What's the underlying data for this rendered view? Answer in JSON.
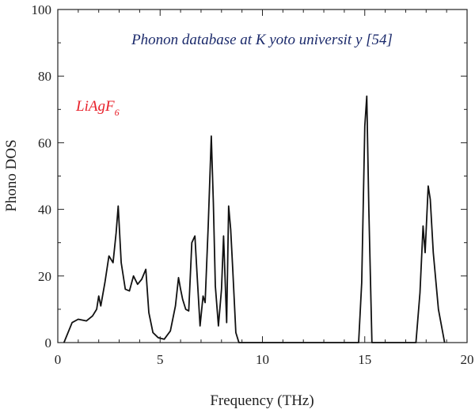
{
  "chart_data": {
    "type": "line",
    "title": "Phonon database at K yoto universit y [54]",
    "xlabel": "Frequency (THz)",
    "ylabel": "Phono DOS",
    "xlim": [
      0,
      20
    ],
    "ylim": [
      0,
      100
    ],
    "xticks": [
      0,
      5,
      10,
      15,
      20
    ],
    "yticks": [
      0,
      20,
      40,
      60,
      80,
      100
    ],
    "annotation": {
      "base": "LiAgF",
      "subscript": "6"
    },
    "colors": {
      "line": "#111111",
      "title": "#1b2a6b",
      "annotation": "#e8202a",
      "axis": "#222222"
    },
    "series": [
      {
        "x": [
          0.3,
          0.7,
          1.0,
          1.4,
          1.7,
          1.9,
          2.0,
          2.1,
          2.3,
          2.5,
          2.7,
          2.85,
          2.95,
          3.1,
          3.3,
          3.5,
          3.7,
          3.9,
          4.1,
          4.3,
          4.45,
          4.65,
          4.9,
          5.2,
          5.5,
          5.75,
          5.9,
          6.0,
          6.1,
          6.25,
          6.4,
          6.55,
          6.7,
          6.8,
          6.95,
          7.1,
          7.2,
          7.35,
          7.5,
          7.6,
          7.7,
          7.85,
          8.0,
          8.1,
          8.25,
          8.35,
          8.45,
          8.55,
          8.7,
          8.85,
          9.0,
          14.7,
          14.85,
          15.0,
          15.1,
          15.2,
          15.35,
          17.5,
          17.7,
          17.85,
          17.95,
          18.1,
          18.2,
          18.35,
          18.6,
          18.9
        ],
        "y": [
          0,
          6,
          7,
          6.5,
          8,
          10,
          14,
          11,
          18,
          26,
          24,
          33,
          41,
          24,
          16,
          15.5,
          20,
          17.5,
          19,
          22,
          9,
          3,
          1.5,
          1,
          3.5,
          11,
          19.5,
          16,
          13,
          10,
          9.5,
          30,
          32,
          21,
          5,
          14,
          12,
          35,
          62,
          42,
          17,
          5,
          16,
          32,
          6,
          41,
          34,
          22,
          3,
          0,
          0,
          0,
          18,
          65,
          74,
          40,
          0,
          0,
          15,
          35,
          27,
          47,
          43,
          27,
          10,
          0
        ]
      }
    ]
  }
}
